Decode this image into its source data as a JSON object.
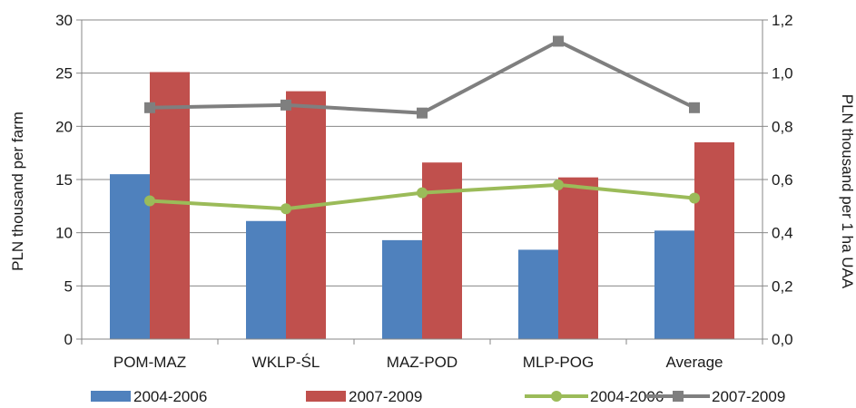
{
  "chart_data": {
    "type": "bar",
    "categories": [
      "POM-MAZ",
      "WKLP-ŚL",
      "MAZ-POD",
      "MLP-POG",
      "Average"
    ],
    "series": [
      {
        "name": "2004-2006",
        "kind": "bar",
        "axis": "left",
        "color": "#4f81bd",
        "values": [
          15.5,
          11.1,
          9.3,
          8.4,
          10.2
        ]
      },
      {
        "name": "2007-2009",
        "kind": "bar",
        "axis": "left",
        "color": "#c0504d",
        "values": [
          25.1,
          23.3,
          16.6,
          15.2,
          18.5
        ]
      },
      {
        "name": "2004-2006",
        "kind": "line",
        "axis": "right",
        "color": "#9bbb59",
        "marker": "circle",
        "values": [
          0.52,
          0.49,
          0.55,
          0.58,
          0.53
        ]
      },
      {
        "name": "2007-2009",
        "kind": "line",
        "axis": "right",
        "color": "#7f7f7f",
        "marker": "square",
        "values": [
          0.87,
          0.88,
          0.85,
          1.12,
          0.87
        ]
      }
    ],
    "ylabel": "PLN thousand per farm",
    "y2label": "PLN thousand per 1 ha UAA",
    "ylim": [
      0,
      30
    ],
    "y2lim": [
      0,
      1.2
    ],
    "yticks": [
      "0",
      "5",
      "10",
      "15",
      "20",
      "25",
      "30"
    ],
    "y2ticks": [
      "0,0",
      "0,2",
      "0,4",
      "0,6",
      "0,8",
      "1,0",
      "1,2"
    ],
    "grid": true,
    "legend_position": "bottom"
  }
}
